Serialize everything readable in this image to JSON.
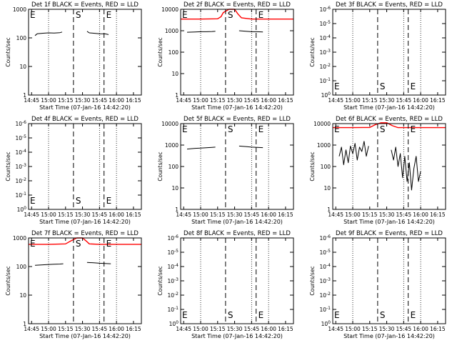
{
  "window_title": "",
  "chart_data": [
    {
      "type": "line",
      "title": "Det 1f BLACK = Events, RED = LLD",
      "xlabel": "Start Time (07-Jan-16 14:42:20)",
      "ylabel": "Counts/sec",
      "xlim": [
        "14:42:20",
        "16:22:00"
      ],
      "ylim": [
        1,
        1000
      ],
      "log_y": true,
      "x_tick_labels": [
        "14:45",
        "15:00",
        "15:15",
        "15:30",
        "15:45",
        "16:00",
        "16:15"
      ],
      "y_tick_labels": [
        "1",
        "10",
        "100",
        "1000"
      ],
      "markers": [
        {
          "label": "E",
          "time": "14:44"
        },
        {
          "label": "S",
          "time": "15:22"
        },
        {
          "label": "E",
          "time": "15:49"
        }
      ],
      "series": [
        {
          "color": "#000000",
          "segments": [
            {
              "x": [
                "14:48",
                "14:50",
                "14:55",
                "15:00",
                "15:05",
                "15:10",
                "15:12"
              ],
              "y": [
                120,
                140,
                145,
                150,
                148,
                152,
                160
              ]
            },
            {
              "x": [
                "15:34",
                "15:36",
                "15:40",
                "15:45",
                "15:50",
                "15:53"
              ],
              "y": [
                170,
                150,
                145,
                140,
                138,
                130
              ]
            }
          ]
        }
      ]
    },
    {
      "type": "line",
      "title": "Det 2f BLACK = Events, RED = LLD",
      "xlabel": "Start Time (07-Jan-16 14:42:20)",
      "ylabel": "Counts/sec",
      "xlim": [
        "14:42:20",
        "16:22:00"
      ],
      "ylim": [
        1,
        10000
      ],
      "log_y": true,
      "x_tick_labels": [
        "14:45",
        "15:00",
        "15:15",
        "15:30",
        "15:45",
        "16:00",
        "16:15"
      ],
      "y_tick_labels": [
        "1",
        "10",
        "100",
        "1000",
        "10000"
      ],
      "markers": [
        {
          "label": "E",
          "time": "14:44"
        },
        {
          "label": "S",
          "time": "15:22"
        },
        {
          "label": "E",
          "time": "15:49"
        }
      ],
      "series": [
        {
          "color": "#ff0000",
          "segments": [
            {
              "x": [
                "14:42:20",
                "15:00",
                "15:15",
                "15:18",
                "15:20",
                "15:25",
                "15:30",
                "15:33",
                "15:36",
                "15:45",
                "16:00",
                "16:22"
              ],
              "y": [
                3500,
                3500,
                3600,
                4500,
                7000,
                10000,
                10000,
                6000,
                4000,
                3500,
                3500,
                3500
              ]
            }
          ]
        },
        {
          "color": "#000000",
          "segments": [
            {
              "x": [
                "14:48",
                "14:55",
                "15:00",
                "15:05",
                "15:10",
                "15:13"
              ],
              "y": [
                850,
                880,
                900,
                900,
                920,
                950
              ]
            },
            {
              "x": [
                "15:34",
                "15:40",
                "15:45",
                "15:50",
                "15:55"
              ],
              "y": [
                1000,
                950,
                900,
                900,
                880
              ]
            }
          ]
        }
      ]
    },
    {
      "type": "line",
      "title": "Det 3f BLACK = Events, RED = LLD",
      "xlabel": "Start Time (07-Jan-16 14:42:20)",
      "ylabel": "Counts/sec",
      "xlim": [
        "14:42:20",
        "16:22:00"
      ],
      "ylim": [
        1,
        1e-06
      ],
      "log_y": true,
      "inverted_y": true,
      "x_tick_labels": [
        "14:45",
        "15:00",
        "15:15",
        "15:30",
        "15:45",
        "16:00",
        "16:15"
      ],
      "y_tick_labels": [
        "10^-6",
        "10^-5",
        "10^-4",
        "10^-3",
        "10^-2",
        "10^-1",
        "10^0"
      ],
      "markers": [
        {
          "label": "E",
          "time": "14:44"
        },
        {
          "label": "S",
          "time": "15:22"
        },
        {
          "label": "E",
          "time": "15:49"
        }
      ],
      "series": []
    },
    {
      "type": "line",
      "title": "Det 4f BLACK = Events, RED = LLD",
      "xlabel": "Start Time (07-Jan-16 14:42:20)",
      "ylabel": "Counts/sec",
      "xlim": [
        "14:42:20",
        "16:22:00"
      ],
      "ylim": [
        1,
        1e-06
      ],
      "log_y": true,
      "inverted_y": true,
      "x_tick_labels": [
        "14:45",
        "15:00",
        "15:15",
        "15:30",
        "15:45",
        "16:00",
        "16:15"
      ],
      "y_tick_labels": [
        "10^-6",
        "10^-5",
        "10^-4",
        "10^-3",
        "10^-2",
        "10^-1",
        "10^0"
      ],
      "markers": [
        {
          "label": "E",
          "time": "14:44"
        },
        {
          "label": "S",
          "time": "15:22"
        },
        {
          "label": "E",
          "time": "15:49"
        }
      ],
      "series": []
    },
    {
      "type": "line",
      "title": "Det 5f BLACK = Events, RED = LLD",
      "xlabel": "Start Time (07-Jan-16 14:42:20)",
      "ylabel": "Counts/sec",
      "xlim": [
        "14:42:20",
        "16:22:00"
      ],
      "ylim": [
        1,
        10000
      ],
      "log_y": true,
      "x_tick_labels": [
        "14:45",
        "15:00",
        "15:15",
        "15:30",
        "15:45",
        "16:00",
        "16:15"
      ],
      "y_tick_labels": [
        "1",
        "10",
        "100",
        "1000",
        "10000"
      ],
      "markers": [
        {
          "label": "E",
          "time": "14:44"
        },
        {
          "label": "S",
          "time": "15:22"
        },
        {
          "label": "E",
          "time": "15:49"
        }
      ],
      "series": [
        {
          "color": "#000000",
          "segments": [
            {
              "x": [
                "14:48",
                "14:55",
                "15:00",
                "15:05",
                "15:10",
                "15:13"
              ],
              "y": [
                650,
                700,
                720,
                750,
                780,
                800
              ]
            },
            {
              "x": [
                "15:34",
                "15:40",
                "15:45",
                "15:50",
                "15:55"
              ],
              "y": [
                900,
                850,
                800,
                780,
                760
              ]
            }
          ]
        }
      ]
    },
    {
      "type": "line",
      "title": "Det 6f BLACK = Events, RED = LLD",
      "xlabel": "Start Time (07-Jan-16 14:42:20)",
      "ylabel": "Counts/sec",
      "xlim": [
        "14:42:20",
        "16:22:00"
      ],
      "ylim": [
        1,
        10000
      ],
      "log_y": true,
      "x_tick_labels": [
        "14:45",
        "15:00",
        "15:15",
        "15:30",
        "15:45",
        "16:00",
        "16:15"
      ],
      "y_tick_labels": [
        "1",
        "10",
        "100",
        "1000",
        "10000"
      ],
      "markers": [
        {
          "label": "E",
          "time": "14:44"
        },
        {
          "label": "S",
          "time": "15:22"
        },
        {
          "label": "E",
          "time": "15:49"
        }
      ],
      "series": [
        {
          "color": "#ff0000",
          "segments": [
            {
              "x": [
                "14:42:20",
                "15:00",
                "15:15",
                "15:20",
                "15:25",
                "15:30",
                "15:35",
                "15:40",
                "16:00",
                "16:22"
              ],
              "y": [
                6500,
                6500,
                6600,
                9000,
                11000,
                11000,
                8000,
                6500,
                6500,
                6500
              ]
            }
          ]
        },
        {
          "color": "#000000",
          "segments": [
            {
              "x": [
                "14:48",
                "14:50",
                "14:52",
                "14:54",
                "14:56",
                "14:58",
                "15:00",
                "15:02",
                "15:04",
                "15:06",
                "15:08",
                "15:10",
                "15:12",
                "15:14"
              ],
              "y": [
                300,
                800,
                120,
                600,
                150,
                900,
                400,
                1200,
                200,
                800,
                500,
                1500,
                300,
                900
              ]
            },
            {
              "x": [
                "15:34",
                "15:36",
                "15:38",
                "15:40",
                "15:42",
                "15:44",
                "15:46",
                "15:48",
                "15:50",
                "15:52",
                "15:54",
                "15:56",
                "15:58",
                "16:00"
              ],
              "y": [
                600,
                200,
                800,
                100,
                400,
                30,
                300,
                20,
                150,
                8,
                80,
                300,
                20,
                60
              ]
            }
          ]
        }
      ]
    },
    {
      "type": "line",
      "title": "Det 7f BLACK = Events, RED = LLD",
      "xlabel": "Start Time (07-Jan-16 14:42:20)",
      "ylabel": "Counts/sec",
      "xlim": [
        "14:42:20",
        "16:22:00"
      ],
      "ylim": [
        1,
        1000
      ],
      "log_y": true,
      "x_tick_labels": [
        "14:45",
        "15:00",
        "15:15",
        "15:30",
        "15:45",
        "16:00",
        "16:15"
      ],
      "y_tick_labels": [
        "1",
        "10",
        "100",
        "1000"
      ],
      "markers": [
        {
          "label": "E",
          "time": "14:44"
        },
        {
          "label": "S",
          "time": "15:22"
        },
        {
          "label": "E",
          "time": "15:49"
        }
      ],
      "series": [
        {
          "color": "#ff0000",
          "segments": [
            {
              "x": [
                "14:42:20",
                "15:00",
                "15:15",
                "15:20",
                "15:25",
                "15:30",
                "15:33",
                "15:36",
                "15:45",
                "16:00",
                "16:22"
              ],
              "y": [
                600,
                600,
                620,
                800,
                1000,
                1000,
                800,
                620,
                600,
                600,
                600
              ]
            }
          ]
        },
        {
          "color": "#000000",
          "segments": [
            {
              "x": [
                "14:48",
                "14:55",
                "15:00",
                "15:05",
                "15:10",
                "15:13"
              ],
              "y": [
                110,
                115,
                118,
                120,
                122,
                125
              ]
            },
            {
              "x": [
                "15:34",
                "15:40",
                "15:45",
                "15:50",
                "15:55"
              ],
              "y": [
                140,
                135,
                130,
                128,
                125
              ]
            }
          ]
        }
      ]
    },
    {
      "type": "line",
      "title": "Det 8f BLACK = Events, RED = LLD",
      "xlabel": "Start Time (07-Jan-16 14:42:20)",
      "ylabel": "Counts/sec",
      "xlim": [
        "14:42:20",
        "16:22:00"
      ],
      "ylim": [
        1,
        1e-06
      ],
      "log_y": true,
      "inverted_y": true,
      "x_tick_labels": [
        "14:45",
        "15:00",
        "15:15",
        "15:30",
        "15:45",
        "16:00",
        "16:15"
      ],
      "y_tick_labels": [
        "10^-6",
        "10^-5",
        "10^-4",
        "10^-3",
        "10^-2",
        "10^-1",
        "10^0"
      ],
      "markers": [
        {
          "label": "E",
          "time": "14:44"
        },
        {
          "label": "S",
          "time": "15:22"
        },
        {
          "label": "E",
          "time": "15:49"
        }
      ],
      "series": []
    },
    {
      "type": "line",
      "title": "Det 9f BLACK = Events, RED = LLD",
      "xlabel": "Start Time (07-Jan-16 14:42:20)",
      "ylabel": "Counts/sec",
      "xlim": [
        "14:42:20",
        "16:22:00"
      ],
      "ylim": [
        1,
        1e-06
      ],
      "log_y": true,
      "inverted_y": true,
      "x_tick_labels": [
        "14:45",
        "15:00",
        "15:15",
        "15:30",
        "15:45",
        "16:00",
        "16:15"
      ],
      "y_tick_labels": [
        "10^-6",
        "10^-5",
        "10^-4",
        "10^-3",
        "10^-2",
        "10^-1",
        "10^0"
      ],
      "markers": [
        {
          "label": "E",
          "time": "14:44"
        },
        {
          "label": "S",
          "time": "15:22"
        },
        {
          "label": "E",
          "time": "15:49"
        }
      ],
      "series": []
    }
  ]
}
